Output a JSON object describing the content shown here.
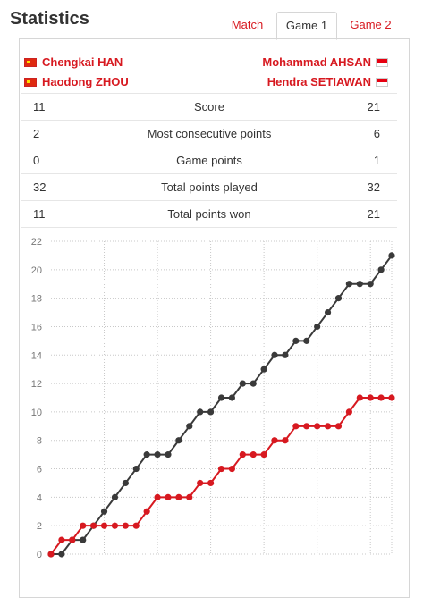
{
  "header": {
    "title": "Statistics"
  },
  "tabs": [
    {
      "label": "Match",
      "active": false
    },
    {
      "label": "Game 1",
      "active": true
    },
    {
      "label": "Game 2",
      "active": false
    }
  ],
  "teams": {
    "left": {
      "players": [
        "Chengkai HAN",
        "Haodong ZHOU"
      ],
      "flag_icon": "china-flag-icon"
    },
    "right": {
      "players": [
        "Mohammad AHSAN",
        "Hendra SETIAWAN"
      ],
      "flag_icon": "indonesia-flag-icon"
    }
  },
  "stats": [
    {
      "left": "11",
      "label": "Score",
      "right": "21"
    },
    {
      "left": "2",
      "label": "Most consecutive points",
      "right": "6"
    },
    {
      "left": "0",
      "label": "Game points",
      "right": "1"
    },
    {
      "left": "32",
      "label": "Total points played",
      "right": "32"
    },
    {
      "left": "11",
      "label": "Total points won",
      "right": "21"
    }
  ],
  "colors": {
    "accent": "#d71920",
    "dark_series": "#3a3a3a",
    "grid": "#c8c8c8"
  },
  "chart_data": {
    "type": "line",
    "title": "",
    "xlabel": "",
    "ylabel": "",
    "ylim": [
      0,
      22
    ],
    "yticks": [
      0,
      2,
      4,
      6,
      8,
      10,
      12,
      14,
      16,
      18,
      20,
      22
    ],
    "grid": true,
    "legend": "none",
    "x": [
      0,
      1,
      2,
      3,
      4,
      5,
      6,
      7,
      8,
      9,
      10,
      11,
      12,
      13,
      14,
      15,
      16,
      17,
      18,
      19,
      20,
      21,
      22,
      23,
      24,
      25,
      26,
      27,
      28,
      29,
      30,
      31,
      32
    ],
    "series": [
      {
        "color": "#3a3a3a",
        "values": [
          0,
          0,
          1,
          1,
          2,
          3,
          4,
          5,
          6,
          7,
          7,
          7,
          8,
          9,
          10,
          10,
          11,
          11,
          12,
          12,
          13,
          14,
          14,
          15,
          15,
          16,
          17,
          18,
          19,
          19,
          19,
          20,
          21
        ]
      },
      {
        "color": "#d71920",
        "values": [
          0,
          1,
          1,
          2,
          2,
          2,
          2,
          2,
          2,
          3,
          4,
          4,
          4,
          4,
          5,
          5,
          6,
          6,
          7,
          7,
          7,
          8,
          8,
          9,
          9,
          9,
          9,
          9,
          10,
          11,
          11,
          11,
          11
        ]
      }
    ]
  }
}
